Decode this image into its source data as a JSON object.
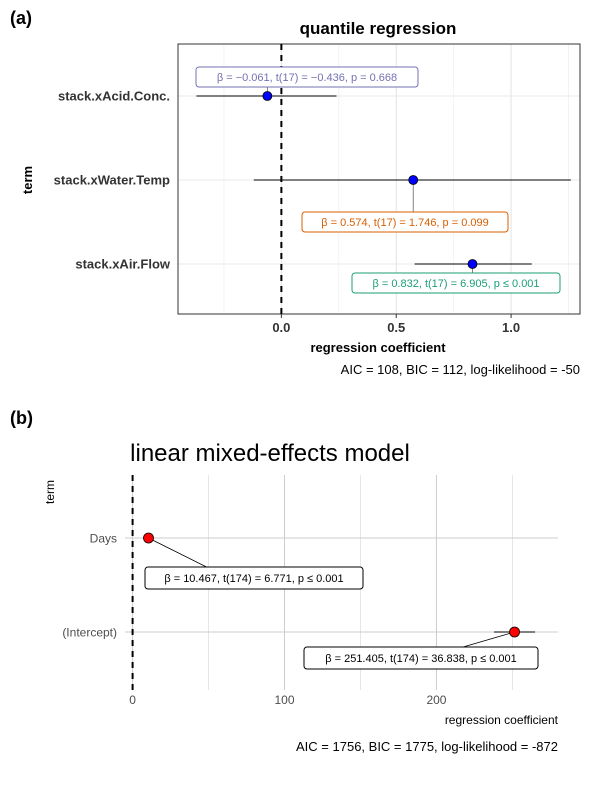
{
  "chart_data": [
    {
      "panel_label": "(a)",
      "type": "scatter",
      "title": "quantile regression",
      "xlabel": "regression coefficient",
      "ylabel": "term",
      "xlim": [
        -0.45,
        1.3
      ],
      "x_ticks": [
        0.0,
        0.5,
        1.0
      ],
      "x_tick_labels": [
        "0.0",
        "0.5",
        "1.0"
      ],
      "zero_line": 0,
      "grid": true,
      "caption": "AIC = 108, BIC = 112, log-likelihood = -50",
      "point_color": "#0000ff",
      "terms": [
        {
          "term": "stack.xAcid.Conc.",
          "estimate": -0.061,
          "ci": [
            -0.37,
            0.24
          ],
          "label": "β = −0.061,  t(17) = −0.436,  p = 0.668",
          "label_color": "#7570b3"
        },
        {
          "term": "stack.xWater.Temp",
          "estimate": 0.574,
          "ci": [
            -0.12,
            1.26
          ],
          "label": "β = 0.574,  t(17) = 1.746,  p = 0.099",
          "label_color": "#d95f02"
        },
        {
          "term": "stack.xAir.Flow",
          "estimate": 0.832,
          "ci": [
            0.58,
            1.09
          ],
          "label": "β = 0.832,  t(17) = 6.905,  p ≤ 0.001",
          "label_color": "#1b9e77"
        }
      ]
    },
    {
      "panel_label": "(b)",
      "type": "scatter",
      "title": "linear mixed-effects model",
      "xlabel": "regression coefficient",
      "ylabel": "term",
      "xlim": [
        -5,
        280
      ],
      "x_ticks": [
        0,
        100,
        200
      ],
      "x_tick_labels": [
        "0",
        "100",
        "200"
      ],
      "zero_line": 0,
      "grid": true,
      "caption": "AIC = 1756, BIC = 1775, log-likelihood = -872",
      "point_color": "#ff0000",
      "terms": [
        {
          "term": "Days",
          "estimate": 10.467,
          "ci": [
            7.3,
            13.6
          ],
          "label": "β = 10.467,  t(174) = 6.771,  p ≤ 0.001",
          "label_color": "#000000"
        },
        {
          "term": "(Intercept)",
          "estimate": 251.405,
          "ci": [
            237.9,
            264.9
          ],
          "label": "β = 251.405,  t(174) = 36.838,  p ≤ 0.001",
          "label_color": "#000000"
        }
      ]
    }
  ]
}
